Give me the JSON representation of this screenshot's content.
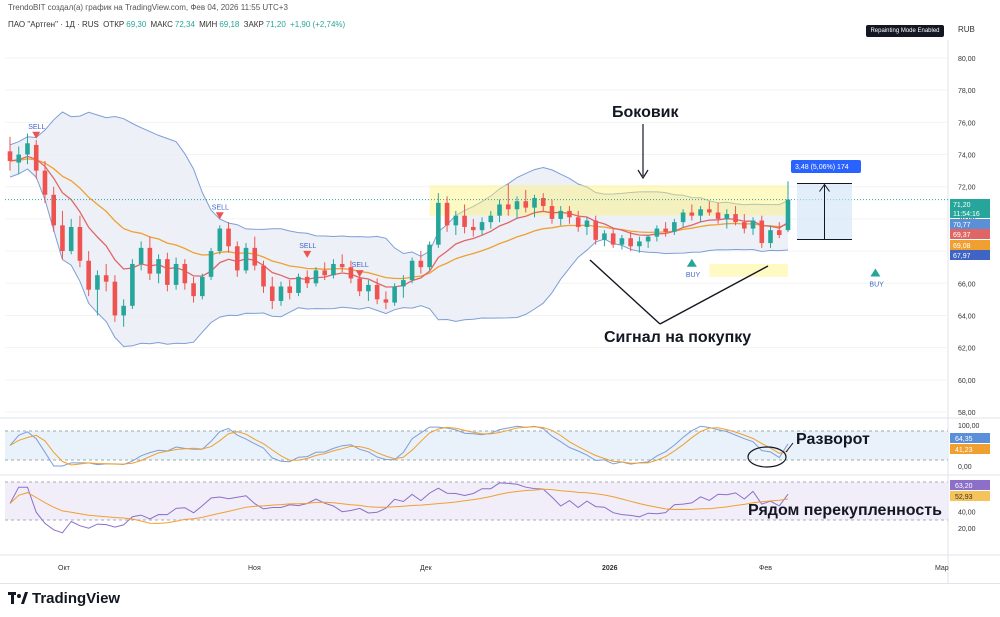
{
  "header": {
    "author_line": "TrendoBIT создал(а) график на TradingView.com, Фев 04, 2026 11:55 UTC+3",
    "symbol": "ПАО \"Артген\" · 1Д · RUS",
    "open_label": "ОТКР",
    "open_value": "69,30",
    "high_label": "МАКС",
    "high_value": "72,34",
    "low_label": "МИН",
    "low_value": "69,18",
    "close_label": "ЗАКР",
    "close_value": "71,20",
    "change": "+1,90 (+2,74%)"
  },
  "badges": {
    "repainting": "Repainting Mode Enabled",
    "currency": "RUB"
  },
  "annotations": {
    "sideways": "Боковик",
    "buy_signal": "Сигнал на покупку",
    "reversal": "Разворот",
    "overbought": "Рядом перекупленность"
  },
  "footer": {
    "brand": "TradingView"
  },
  "colors": {
    "up": "#26a69a",
    "down": "#ef5350",
    "bb": "#7e9ed6",
    "ma_fast": "#e06666",
    "ma_slow": "#f0a030",
    "highlight": "#fff27a",
    "stoch_k": "#7e9ed6",
    "stoch_d": "#f0a030",
    "rsi": "#8b6fc9"
  },
  "chart_data": {
    "type": "candlestick",
    "title": "ПАО \"Артген\" · 1Д · RUS",
    "price_axis": {
      "ticks": [
        80,
        78,
        76,
        74,
        72,
        70,
        68,
        66,
        64,
        62,
        60,
        58
      ],
      "tick_labels": [
        "80,00",
        "78,00",
        "76,00",
        "74,00",
        "72,00",
        "70,00",
        "68,00",
        "66,00",
        "64,00",
        "62,00",
        "60,00",
        "58,00"
      ],
      "ylim": [
        57.5,
        82
      ]
    },
    "time_axis": {
      "labels": [
        "Окт",
        "Ноя",
        "Дек",
        "2026",
        "Фев",
        "Мар"
      ]
    },
    "ohlc_approx": [
      [
        74.2,
        75.1,
        73.0,
        73.6
      ],
      [
        73.5,
        74.5,
        72.8,
        74.0
      ],
      [
        74.0,
        75.3,
        73.4,
        74.7
      ],
      [
        74.6,
        74.9,
        72.5,
        73.0
      ],
      [
        73.0,
        73.6,
        71.0,
        71.5
      ],
      [
        71.5,
        72.0,
        69.2,
        69.6
      ],
      [
        69.6,
        70.5,
        67.5,
        68.0
      ],
      [
        68.0,
        70.0,
        67.8,
        69.5
      ],
      [
        69.5,
        70.2,
        67.0,
        67.4
      ],
      [
        67.4,
        68.0,
        65.2,
        65.6
      ],
      [
        65.6,
        66.8,
        64.0,
        66.5
      ],
      [
        66.5,
        67.2,
        65.5,
        66.1
      ],
      [
        66.1,
        66.5,
        63.6,
        64.0
      ],
      [
        64.0,
        65.0,
        63.3,
        64.6
      ],
      [
        64.6,
        67.5,
        64.4,
        67.2
      ],
      [
        67.2,
        68.6,
        66.8,
        68.2
      ],
      [
        68.2,
        68.9,
        66.2,
        66.6
      ],
      [
        66.6,
        67.8,
        66.0,
        67.5
      ],
      [
        67.5,
        67.9,
        65.5,
        65.9
      ],
      [
        65.9,
        67.6,
        65.6,
        67.2
      ],
      [
        67.2,
        67.5,
        65.6,
        66.0
      ],
      [
        66.0,
        66.4,
        64.8,
        65.2
      ],
      [
        65.2,
        66.6,
        65.0,
        66.4
      ],
      [
        66.4,
        68.2,
        66.2,
        68.0
      ],
      [
        68.0,
        69.6,
        67.8,
        69.4
      ],
      [
        69.4,
        69.8,
        67.9,
        68.3
      ],
      [
        68.3,
        68.6,
        66.4,
        66.8
      ],
      [
        66.8,
        68.5,
        66.6,
        68.2
      ],
      [
        68.2,
        68.9,
        66.8,
        67.1
      ],
      [
        67.1,
        67.4,
        65.4,
        65.8
      ],
      [
        65.8,
        66.4,
        64.4,
        64.9
      ],
      [
        64.9,
        66.1,
        64.6,
        65.8
      ],
      [
        65.8,
        66.2,
        65.0,
        65.4
      ],
      [
        65.4,
        66.6,
        65.2,
        66.4
      ],
      [
        66.4,
        66.8,
        65.7,
        66.0
      ],
      [
        66.0,
        67.0,
        65.8,
        66.8
      ],
      [
        66.8,
        67.3,
        66.2,
        66.5
      ],
      [
        66.5,
        67.5,
        66.3,
        67.2
      ],
      [
        67.2,
        67.8,
        66.7,
        67.0
      ],
      [
        67.0,
        67.4,
        66.0,
        66.3
      ],
      [
        66.3,
        66.6,
        65.2,
        65.5
      ],
      [
        65.5,
        66.2,
        64.9,
        65.9
      ],
      [
        65.9,
        66.3,
        64.7,
        65.0
      ],
      [
        65.0,
        65.5,
        64.4,
        64.8
      ],
      [
        64.8,
        66.0,
        64.6,
        65.8
      ],
      [
        65.8,
        66.5,
        65.1,
        66.2
      ],
      [
        66.2,
        67.6,
        66.0,
        67.4
      ],
      [
        67.4,
        68.0,
        66.6,
        67.0
      ],
      [
        67.0,
        68.6,
        66.8,
        68.4
      ],
      [
        68.4,
        71.6,
        68.2,
        71.0
      ],
      [
        71.0,
        71.4,
        69.2,
        69.6
      ],
      [
        69.6,
        70.5,
        69.0,
        70.2
      ],
      [
        70.2,
        70.9,
        69.1,
        69.5
      ],
      [
        69.5,
        70.0,
        68.9,
        69.3
      ],
      [
        69.3,
        70.1,
        69.0,
        69.8
      ],
      [
        69.8,
        70.5,
        69.4,
        70.2
      ],
      [
        70.2,
        71.2,
        69.8,
        70.9
      ],
      [
        70.9,
        72.2,
        70.2,
        70.6
      ],
      [
        70.6,
        71.4,
        70.0,
        71.1
      ],
      [
        71.1,
        71.8,
        70.4,
        70.7
      ],
      [
        70.7,
        71.5,
        70.1,
        71.3
      ],
      [
        71.3,
        71.6,
        70.5,
        70.8
      ],
      [
        70.8,
        71.2,
        69.7,
        70.0
      ],
      [
        70.0,
        70.8,
        69.6,
        70.5
      ],
      [
        70.5,
        70.8,
        69.7,
        70.1
      ],
      [
        70.1,
        70.5,
        69.2,
        69.5
      ],
      [
        69.5,
        70.1,
        69.0,
        69.9
      ],
      [
        69.9,
        70.2,
        68.4,
        68.7
      ],
      [
        68.7,
        69.3,
        68.3,
        69.1
      ],
      [
        69.1,
        69.4,
        68.2,
        68.4
      ],
      [
        68.4,
        69.0,
        68.1,
        68.8
      ],
      [
        68.8,
        69.2,
        68.0,
        68.3
      ],
      [
        68.3,
        68.9,
        67.9,
        68.6
      ],
      [
        68.6,
        69.0,
        68.2,
        68.9
      ],
      [
        68.9,
        69.6,
        68.6,
        69.4
      ],
      [
        69.4,
        69.8,
        68.9,
        69.2
      ],
      [
        69.2,
        70.0,
        69.0,
        69.8
      ],
      [
        69.8,
        70.6,
        69.5,
        70.4
      ],
      [
        70.4,
        70.9,
        69.9,
        70.2
      ],
      [
        70.2,
        70.8,
        69.8,
        70.6
      ],
      [
        70.6,
        71.1,
        70.2,
        70.4
      ],
      [
        70.4,
        71.0,
        69.7,
        70.0
      ],
      [
        70.0,
        70.6,
        69.4,
        70.3
      ],
      [
        70.3,
        70.8,
        69.6,
        69.8
      ],
      [
        69.8,
        70.3,
        69.1,
        69.4
      ],
      [
        69.4,
        70.1,
        69.0,
        69.9
      ],
      [
        69.9,
        70.2,
        68.2,
        68.5
      ],
      [
        68.5,
        69.6,
        68.2,
        69.3
      ],
      [
        69.3,
        69.8,
        68.8,
        69.0
      ],
      [
        69.3,
        72.34,
        69.18,
        71.2
      ]
    ],
    "price_labels": [
      {
        "label": "71,20",
        "note": "last price",
        "color": "#26a69a"
      },
      {
        "label": "11:54:16",
        "note": "countdown",
        "color": "#26a69a"
      },
      {
        "label": "70,77",
        "note": "BB upper",
        "color": "#5b8fd8"
      },
      {
        "label": "69,37",
        "note": "MA fast",
        "color": "#e06666"
      },
      {
        "label": "69,08",
        "note": "MA slow",
        "color": "#f0a030"
      },
      {
        "label": "67,97",
        "note": "BB lower",
        "color": "#3f64c4"
      }
    ],
    "measure": {
      "label": "3,48 (5,06%) 174",
      "from": 68.72,
      "to": 72.2
    },
    "signals": [
      {
        "label": "SELL",
        "price": 75.6
      },
      {
        "label": "SELL",
        "price": 70.6
      },
      {
        "label": "SELL",
        "price": 68.2
      },
      {
        "label": "SELL",
        "price": 67.0
      },
      {
        "label": "BUY",
        "price": 66.9
      },
      {
        "label": "BUY",
        "price": 66.3
      }
    ],
    "stochastic": {
      "ticks": [
        100,
        0
      ],
      "tick_labels": [
        "100,00",
        "0,00"
      ],
      "k": 64.35,
      "d": 41.23,
      "k_label": "64,35",
      "d_label": "41,23"
    },
    "rsi": {
      "ticks": [
        40,
        20
      ],
      "tick_labels": [
        "40,00",
        "20,00"
      ],
      "value": 63.2,
      "ma": 52.93,
      "value_label": "63,20",
      "ma_label": "52,93"
    }
  }
}
